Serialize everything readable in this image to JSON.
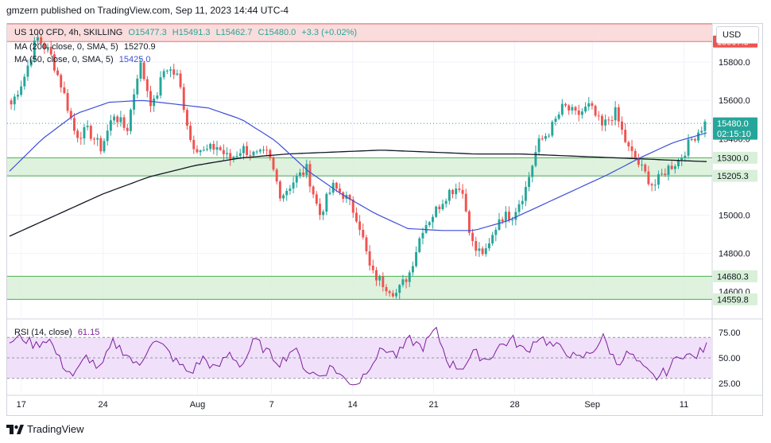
{
  "header": {
    "publisher": "gmzern published on TradingView.com, Sep 11, 2023 14:44 UTC-4"
  },
  "legend": {
    "symbol_line": "US 100 CFD, 4h, SKILLING",
    "ohlc": {
      "o": "O15477.3",
      "h": "H15491.3",
      "l": "L15462.7",
      "c": "C15480.0",
      "chg": "+3.3 (+0.02%)"
    },
    "ma200_label": "MA (200, close, 0, SMA, 5)",
    "ma200_value": "15270.9",
    "ma50_label": "MA (50, close, 0, SMA, 5)",
    "ma50_value": "15425.0",
    "rsi_label": "RSI (14, close)",
    "rsi_value": "61.15"
  },
  "currency": "USD",
  "footer": {
    "brand": "TradingView"
  },
  "colors": {
    "up": "#26a69a",
    "down": "#ef5350",
    "ma200": "#131722",
    "ma50": "#3f4fd8",
    "rsi": "#7e1e9c",
    "rsi_band": "#f0e0fa",
    "zone_red": "#f9d6d6",
    "zone_green": "#d8f0d8",
    "zone_line": "#4caf50",
    "grid": "#f0f3fa"
  },
  "chart_data": {
    "type": "candlestick",
    "timeframe": "4h",
    "ylim": [
      14470,
      16000
    ],
    "y_ticks": [
      "15800.0",
      "15600.0",
      "15400.0",
      "15200.0",
      "15000.0",
      "14800.0",
      "14600.0"
    ],
    "x_ticks": [
      "17",
      "24",
      "Aug",
      "7",
      "14",
      "21",
      "28",
      "Sep",
      "11"
    ],
    "x_tick_pos": [
      0.02,
      0.136,
      0.27,
      0.375,
      0.49,
      0.605,
      0.72,
      0.83,
      0.96
    ],
    "price_tags": [
      {
        "label": "15907.3",
        "value": 15907.3,
        "color": "#ef5350"
      },
      {
        "label": "15480.0",
        "sub": "02:15:10",
        "value": 15480.0,
        "color": "#26a69a"
      },
      {
        "label": "15300.0",
        "value": 15300.0,
        "color": "#d8f0d8"
      },
      {
        "label": "15205.3",
        "value": 15205.3,
        "color": "#d8f0d8"
      },
      {
        "label": "14680.3",
        "value": 14680.3,
        "color": "#d8f0d8"
      },
      {
        "label": "14559.8",
        "value": 14559.8,
        "color": "#d8f0d8"
      }
    ],
    "zones": [
      {
        "from": 15907.3,
        "to": 16000,
        "kind": "resistance"
      },
      {
        "from": 15205.3,
        "to": 15300.0,
        "kind": "support"
      },
      {
        "from": 14559.8,
        "to": 14680.3,
        "kind": "support"
      }
    ],
    "close_anchors": [
      15580,
      15720,
      15930,
      15850,
      15660,
      15420,
      15440,
      15350,
      15530,
      15440,
      15800,
      15560,
      15780,
      15720,
      15380,
      15330,
      15360,
      15290,
      15350,
      15310,
      15320,
      15100,
      15180,
      15240,
      15000,
      15150,
      15100,
      14980,
      14700,
      14640,
      14590,
      14700,
      14930,
      15020,
      15120,
      15160,
      14820,
      14800,
      14990,
      15000,
      15130,
      15370,
      15450,
      15570,
      15520,
      15570,
      15460,
      15540,
      15350,
      15250,
      15150,
      15240,
      15290,
      15400,
      15480
    ],
    "ma200_anchors": [
      14890,
      15000,
      15110,
      15200,
      15260,
      15300,
      15320,
      15330,
      15340,
      15330,
      15320,
      15320,
      15310,
      15300,
      15290,
      15280
    ],
    "ma50_anchors": [
      15230,
      15400,
      15530,
      15590,
      15600,
      15580,
      15560,
      15500,
      15390,
      15230,
      15110,
      15010,
      14930,
      14920,
      14920,
      14970,
      15050,
      15130,
      15210,
      15300,
      15380,
      15430
    ],
    "rsi": {
      "ylim": [
        15,
        85
      ],
      "ticks": [
        "75.00",
        "50.00",
        "25.00"
      ],
      "band": [
        30,
        70
      ],
      "anchors": [
        66,
        70,
        62,
        70,
        45,
        32,
        52,
        38,
        65,
        55,
        40,
        68,
        60,
        45,
        35,
        50,
        38,
        55,
        42,
        68,
        55,
        45,
        60,
        38,
        32,
        42,
        28,
        25,
        45,
        60,
        52,
        68,
        60,
        78,
        45,
        40,
        55,
        48,
        62,
        68,
        55,
        72,
        62,
        58,
        48,
        55,
        70,
        45,
        55,
        40,
        30,
        38,
        55,
        50,
        61
      ]
    }
  }
}
